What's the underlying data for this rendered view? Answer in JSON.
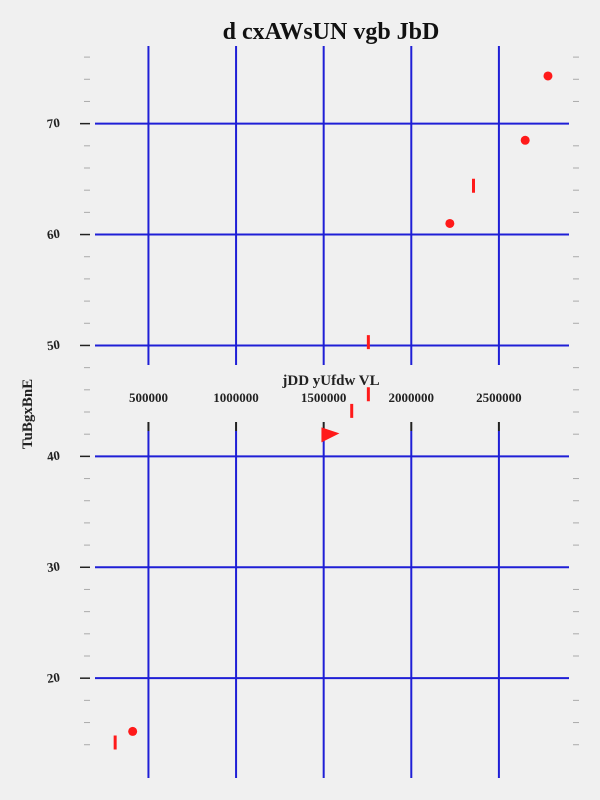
{
  "chart_data": {
    "type": "scatter",
    "title": "d cxAWsUN vgb  JbD",
    "xlabel": "jDD yUfdw VL",
    "ylabel": "TuBgxBnE",
    "xlim": [
      195000,
      2900000
    ],
    "ylim": [
      11,
      77
    ],
    "x_ticks": [
      500000,
      1000000,
      1500000,
      2000000,
      2500000
    ],
    "x_tick_labels": [
      "500000",
      "1000000",
      "1500000",
      "2000000",
      "2500000"
    ],
    "y_ticks": [
      20,
      30,
      40,
      50,
      60,
      70
    ],
    "y_tick_labels": [
      "20",
      "30",
      "40",
      "50",
      "60",
      "70"
    ],
    "grid": true,
    "colors": {
      "grid": "#1f1fd6",
      "marker": "#ff1a1a",
      "background": "#f0f0f0"
    },
    "series": [
      {
        "marker": "circle",
        "points": [
          {
            "x": 410000,
            "y": 15.2
          },
          {
            "x": 2220000,
            "y": 61.0
          },
          {
            "x": 2650000,
            "y": 68.5
          },
          {
            "x": 2780000,
            "y": 74.3
          }
        ]
      },
      {
        "marker": "vline",
        "points": [
          {
            "x": 310000,
            "y": 14.2
          },
          {
            "x": 1660000,
            "y": 44.1
          },
          {
            "x": 1755000,
            "y": 45.6
          },
          {
            "x": 1755000,
            "y": 50.3
          },
          {
            "x": 2355000,
            "y": 64.4
          }
        ]
      },
      {
        "marker": "triangle",
        "points": [
          {
            "x": 1510000,
            "y": 41.8
          }
        ]
      }
    ]
  }
}
